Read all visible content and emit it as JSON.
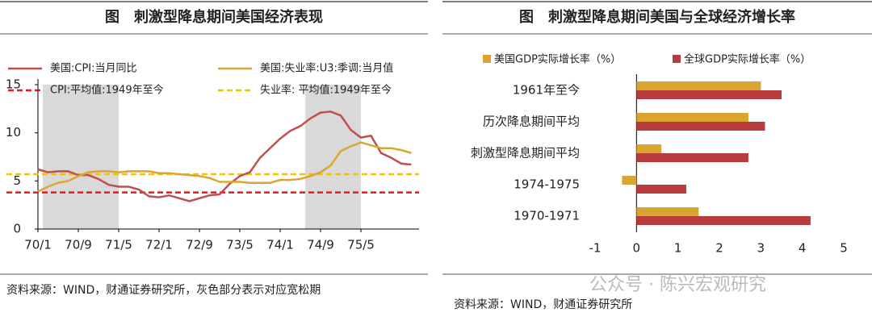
{
  "chart_data": [
    {
      "type": "line",
      "title": "图　刺激型降息期间美国经济表现",
      "source": "资料来源：WIND，财通证券研究所，灰色部分表示对应宽松期",
      "categories": [
        "70/1",
        null,
        null,
        null,
        "70/9",
        null,
        null,
        null,
        "71/5",
        null,
        null,
        null,
        "72/1",
        null,
        null,
        null,
        "72/9",
        null,
        null,
        null,
        "73/5",
        null,
        null,
        null,
        "74/1",
        null,
        null,
        null,
        "74/9",
        null,
        null,
        null,
        "75/5",
        null,
        null,
        null,
        null,
        null
      ],
      "series": [
        {
          "name": "美国:CPI:当月同比",
          "color": "#c0504d",
          "values": [
            6.2,
            5.9,
            6.0,
            6.0,
            5.6,
            5.6,
            5.2,
            4.6,
            4.4,
            4.4,
            4.1,
            3.4,
            3.3,
            3.5,
            3.2,
            2.9,
            3.2,
            3.5,
            3.6,
            4.7,
            5.5,
            5.9,
            7.4,
            8.4,
            9.4,
            10.2,
            10.7,
            11.5,
            12.1,
            12.2,
            11.8,
            10.3,
            9.5,
            9.7,
            7.9,
            7.4,
            6.8,
            6.7
          ]
        },
        {
          "name": "美国:失业率:U3:季调:当月值",
          "color": "#dba531",
          "values": [
            3.9,
            4.4,
            4.8,
            5.0,
            5.5,
            5.9,
            6.0,
            6.0,
            5.9,
            6.0,
            6.0,
            6.0,
            5.8,
            5.8,
            5.7,
            5.6,
            5.5,
            5.3,
            4.9,
            4.9,
            4.9,
            4.8,
            4.8,
            4.8,
            5.1,
            5.1,
            5.2,
            5.5,
            5.9,
            6.6,
            8.1,
            8.6,
            9.0,
            8.7,
            8.4,
            8.4,
            8.2,
            7.9
          ]
        }
      ],
      "reference_lines": [
        {
          "name": "CPI:平均值:1949年至今",
          "color": "#e8191b",
          "value": 3.8
        },
        {
          "name": "失业率: 平均值:1949年至今",
          "color": "#f5c400",
          "value": 5.7
        }
      ],
      "shaded": [
        [
          0,
          8
        ],
        [
          26,
          32
        ]
      ],
      "ylim": [
        0,
        15
      ],
      "yticks": [
        0,
        5,
        10,
        15
      ]
    },
    {
      "type": "bar",
      "title": "图　刺激型降息期间美国与全球经济增长率",
      "source": "资料来源：WIND，财通证券研究所",
      "categories": [
        "1961年至今",
        "历次降息期间平均",
        "刺激型降息期间平均",
        "1974-1975",
        "1970-1971"
      ],
      "series": [
        {
          "name": "美国GDP实际增长率（%）",
          "color": "#dba531",
          "values": [
            3.0,
            2.7,
            0.6,
            -0.35,
            1.5
          ]
        },
        {
          "name": "全球GDP实际增长率（%）",
          "color": "#b83c3c",
          "values": [
            3.5,
            3.1,
            2.7,
            1.2,
            4.2
          ]
        }
      ],
      "xlim": [
        -1,
        5
      ],
      "xticks": [
        -1,
        0,
        1,
        2,
        3,
        4,
        5
      ]
    }
  ],
  "watermark": "公众号 · 陈兴宏观研究"
}
